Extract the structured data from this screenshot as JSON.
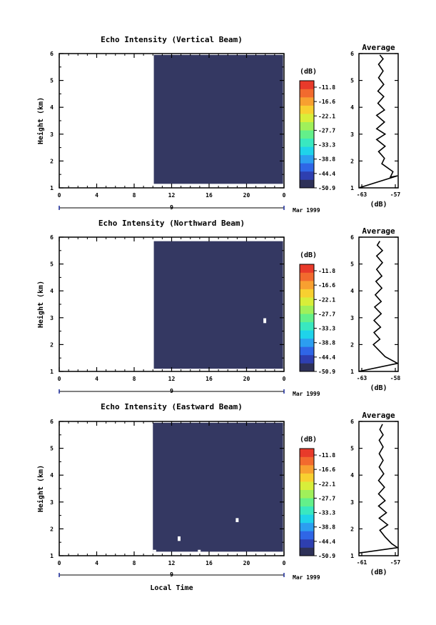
{
  "chart_data": [
    {
      "type": "heatmap",
      "title": "Echo Intensity (Vertical Beam)",
      "ylabel": "Height (km)",
      "xlabel": "",
      "x_ticks": [
        "0",
        "4",
        "8",
        "12",
        "16",
        "20",
        "0"
      ],
      "y_ticks": [
        "1",
        "2",
        "3",
        "4",
        "5",
        "6"
      ],
      "xlim": [
        0,
        24
      ],
      "ylim": [
        1,
        6
      ],
      "date_day": "9",
      "date_month": "Mar 1999",
      "fill_value_db": -50.9,
      "data_region": {
        "x_start": 10.1,
        "x_end": 23.9,
        "y_start": 1.15,
        "y_end": 5.95
      },
      "gaps": [],
      "colorbar": {
        "unit": "(dB)",
        "levels": [
          "-11.8",
          "-16.6",
          "-22.1",
          "-27.7",
          "-33.3",
          "-38.8",
          "-44.4",
          "-50.9"
        ]
      },
      "average_profile": {
        "title": "Average",
        "xlabel": "(dB)",
        "x_ticks": [
          "-63",
          "-57"
        ],
        "xlim": [
          -63,
          -57
        ],
        "ylim": [
          1,
          6
        ],
        "points": [
          [
            -63,
            1.0
          ],
          [
            -57.1,
            1.45
          ],
          [
            -58.2,
            1.4
          ],
          [
            -57.8,
            1.6
          ],
          [
            -59.5,
            1.9
          ],
          [
            -59.1,
            2.1
          ],
          [
            -60.0,
            2.35
          ],
          [
            -59.0,
            2.55
          ],
          [
            -60.3,
            2.8
          ],
          [
            -59.0,
            3.0
          ],
          [
            -60.3,
            3.2
          ],
          [
            -59.1,
            3.45
          ],
          [
            -60.3,
            3.7
          ],
          [
            -59.1,
            3.9
          ],
          [
            -60.1,
            4.15
          ],
          [
            -59.2,
            4.4
          ],
          [
            -60.1,
            4.6
          ],
          [
            -59.2,
            4.85
          ],
          [
            -60.0,
            5.1
          ],
          [
            -59.3,
            5.35
          ],
          [
            -60.0,
            5.6
          ],
          [
            -59.3,
            5.8
          ],
          [
            -59.8,
            5.95
          ]
        ]
      }
    },
    {
      "type": "heatmap",
      "title": "Echo Intensity (Northward Beam)",
      "ylabel": "Height (km)",
      "xlabel": "",
      "x_ticks": [
        "0",
        "4",
        "8",
        "12",
        "16",
        "20",
        "0"
      ],
      "y_ticks": [
        "1",
        "2",
        "3",
        "4",
        "5",
        "6"
      ],
      "xlim": [
        0,
        24
      ],
      "ylim": [
        1,
        6
      ],
      "date_day": "9",
      "date_month": "Mar 1999",
      "fill_value_db": -50.9,
      "data_region": {
        "x_start": 10.1,
        "x_end": 23.9,
        "y_start": 1.1,
        "y_end": 5.85
      },
      "gaps": [
        {
          "x0": 21.8,
          "x1": 22.1,
          "y0": 2.8,
          "y1": 2.98
        }
      ],
      "colorbar": {
        "unit": "(dB)",
        "levels": [
          "-11.8",
          "-16.6",
          "-22.1",
          "-27.7",
          "-33.3",
          "-38.8",
          "-44.4",
          "-50.9"
        ]
      },
      "average_profile": {
        "title": "Average",
        "xlabel": "(dB)",
        "x_ticks": [
          "-63",
          "-58"
        ],
        "xlim": [
          -63.5,
          -57.5
        ],
        "ylim": [
          1,
          6
        ],
        "points": [
          [
            -63.5,
            1.0
          ],
          [
            -57.6,
            1.3
          ],
          [
            -59.5,
            1.55
          ],
          [
            -60.5,
            1.8
          ],
          [
            -61.3,
            2.0
          ],
          [
            -60.3,
            2.2
          ],
          [
            -61.2,
            2.45
          ],
          [
            -60.2,
            2.65
          ],
          [
            -61.2,
            2.9
          ],
          [
            -60.1,
            3.15
          ],
          [
            -61.1,
            3.4
          ],
          [
            -60.1,
            3.6
          ],
          [
            -61.0,
            3.85
          ],
          [
            -60.0,
            4.1
          ],
          [
            -60.9,
            4.35
          ],
          [
            -60.0,
            4.55
          ],
          [
            -60.8,
            4.8
          ],
          [
            -59.9,
            5.05
          ],
          [
            -60.8,
            5.3
          ],
          [
            -59.9,
            5.5
          ],
          [
            -60.7,
            5.7
          ],
          [
            -60.3,
            5.85
          ]
        ]
      }
    },
    {
      "type": "heatmap",
      "title": "Echo Intensity (Eastward Beam)",
      "ylabel": "Height (km)",
      "xlabel": "Local Time",
      "x_ticks": [
        "0",
        "4",
        "8",
        "12",
        "16",
        "20",
        "0"
      ],
      "y_ticks": [
        "1",
        "2",
        "3",
        "4",
        "5",
        "6"
      ],
      "xlim": [
        0,
        24
      ],
      "ylim": [
        1,
        6
      ],
      "date_day": "9",
      "date_month": "Mar 1999",
      "fill_value_db": -50.9,
      "data_region": {
        "x_start": 10.0,
        "x_end": 23.9,
        "y_start": 1.15,
        "y_end": 5.95
      },
      "gaps": [
        {
          "x0": 12.65,
          "x1": 12.95,
          "y0": 1.55,
          "y1": 1.72
        },
        {
          "x0": 18.85,
          "x1": 19.15,
          "y0": 2.25,
          "y1": 2.4
        },
        {
          "x0": 14.8,
          "x1": 15.1,
          "y0": 1.15,
          "y1": 1.22
        },
        {
          "x0": 10.0,
          "x1": 10.35,
          "y0": 1.15,
          "y1": 1.22
        }
      ],
      "colorbar": {
        "unit": "(dB)",
        "levels": [
          "-11.8",
          "-16.6",
          "-22.1",
          "-27.7",
          "-33.3",
          "-38.8",
          "-44.4",
          "-50.9"
        ]
      },
      "average_profile": {
        "title": "Average",
        "xlabel": "(dB)",
        "x_ticks": [
          "-61",
          "-57"
        ],
        "xlim": [
          -62,
          -56
        ],
        "ylim": [
          1,
          6
        ],
        "points": [
          [
            -62,
            1.1
          ],
          [
            -56.1,
            1.3
          ],
          [
            -57.0,
            1.45
          ],
          [
            -58.0,
            1.7
          ],
          [
            -58.8,
            1.95
          ],
          [
            -57.6,
            2.15
          ],
          [
            -58.9,
            2.4
          ],
          [
            -57.8,
            2.6
          ],
          [
            -59.0,
            2.85
          ],
          [
            -58.0,
            3.05
          ],
          [
            -59.0,
            3.3
          ],
          [
            -58.1,
            3.55
          ],
          [
            -59.0,
            3.8
          ],
          [
            -58.2,
            4.05
          ],
          [
            -58.9,
            4.3
          ],
          [
            -58.3,
            4.55
          ],
          [
            -58.9,
            4.8
          ],
          [
            -58.3,
            5.05
          ],
          [
            -58.9,
            5.3
          ],
          [
            -58.3,
            5.5
          ],
          [
            -58.8,
            5.7
          ],
          [
            -58.4,
            5.9
          ]
        ]
      }
    }
  ],
  "colors": {
    "fill": "#343862",
    "colorbar": [
      "#2e3158",
      "#2e3fb0",
      "#2f66e6",
      "#2c9ef0",
      "#1fd3ea",
      "#39e8c0",
      "#63f08a",
      "#a0f05a",
      "#d8ee3a",
      "#f8d030",
      "#f8a030",
      "#f26a2e",
      "#e83a2a"
    ]
  }
}
